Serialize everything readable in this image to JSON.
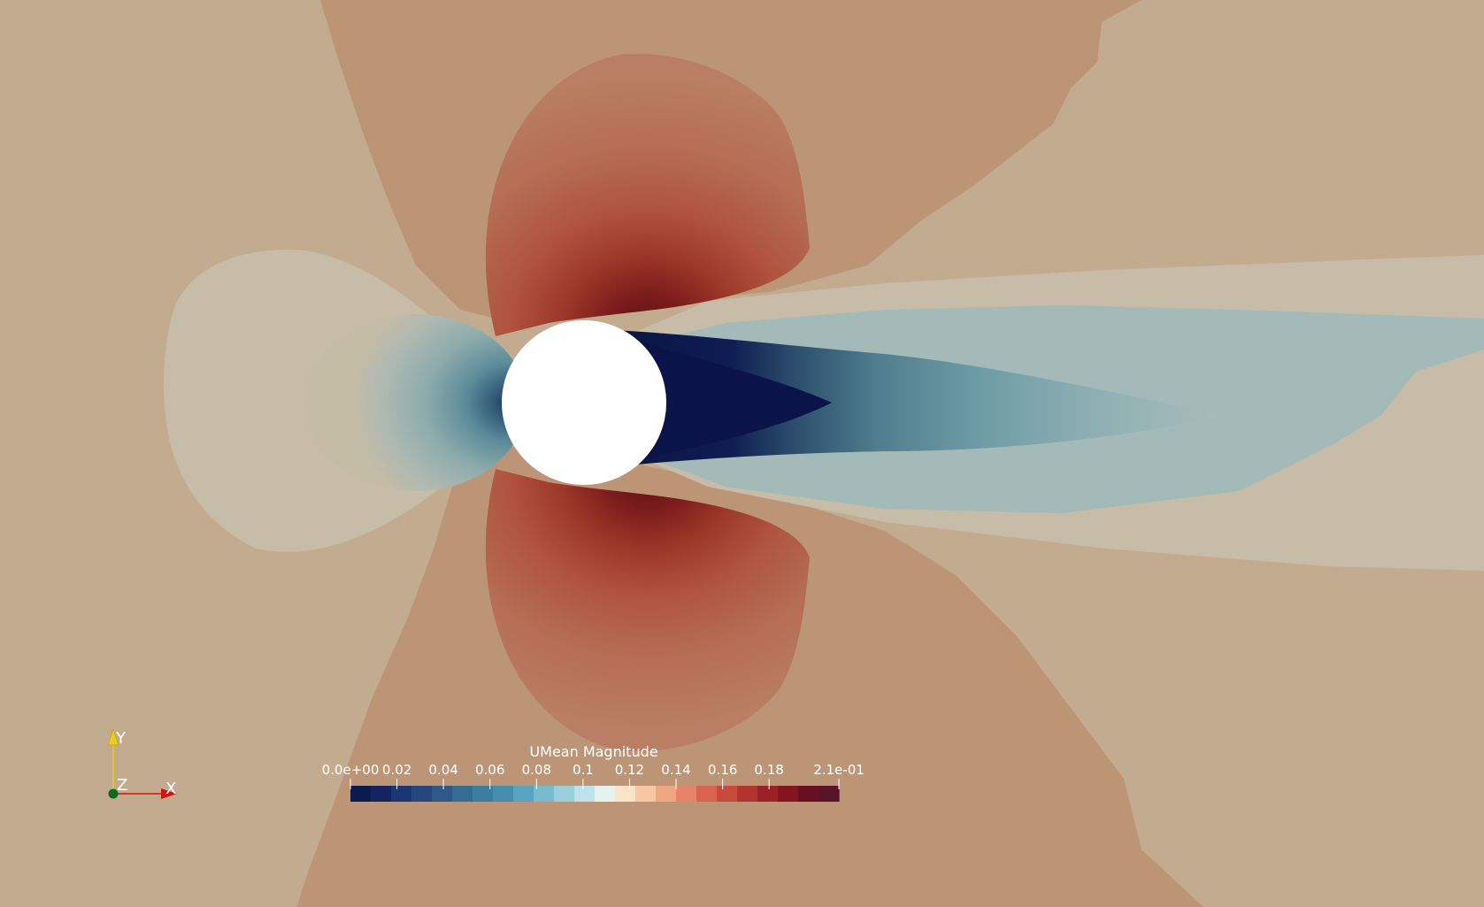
{
  "scalar_bar": {
    "title": "UMean Magnitude",
    "tick_labels": [
      "0.0e+00",
      "0.02",
      "0.04",
      "0.06",
      "0.08",
      "0.1",
      "0.12",
      "0.14",
      "0.16",
      "0.18",
      "2.1e-01"
    ],
    "range": [
      0.0,
      0.21
    ],
    "colors": [
      "#0b1a4f",
      "#132462",
      "#1d3475",
      "#27467f",
      "#2f5888",
      "#356c94",
      "#3d7da2",
      "#468eae",
      "#5aa3c0",
      "#78bbd1",
      "#99cfdd",
      "#bee1ea",
      "#e6f2ef",
      "#fbe3c8",
      "#f7c7a4",
      "#f0a683",
      "#e68469",
      "#d8644f",
      "#c74a3d",
      "#b23430",
      "#9b2125",
      "#831520",
      "#6a0f22",
      "#561428"
    ]
  },
  "orientation_axes": {
    "y_label": "Y",
    "z_label": "Z",
    "x_label": "X",
    "colors": {
      "x": "#d4140f",
      "y": "#e6cf1e",
      "z": "#0c6a1c"
    }
  },
  "scene_colors": {
    "far_field": "#c2ab8f",
    "mid_field": "#bc9577",
    "outer_lobe": "#ba7f63",
    "inner_lobe": "#b06850",
    "peak": "#6e1414",
    "cylinder": "#ffffff",
    "wake_pale": "#c5bba6",
    "wake_light": "#a1b9b8",
    "wake_mid": "#6b9aa4",
    "wake_core": "#0b1448"
  }
}
